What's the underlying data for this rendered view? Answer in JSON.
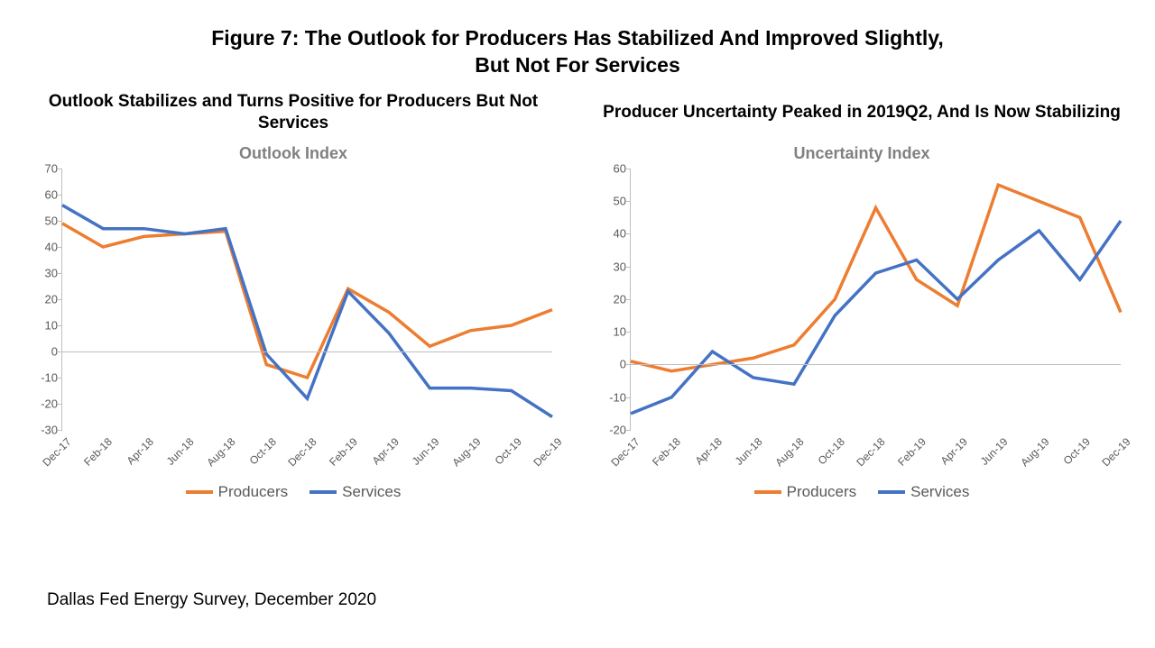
{
  "figure_title_line1": "Figure 7: The Outlook for Producers Has Stabilized And Improved Slightly,",
  "figure_title_line2": "But Not For Services",
  "source_text": "Dallas Fed Energy Survey, December 2020",
  "colors": {
    "producers": "#ed7d31",
    "services": "#4472c4",
    "axis_text": "#595959",
    "axis_line": "#bfbfbf",
    "chart_title_gray": "#808080",
    "background": "#ffffff"
  },
  "line_width": 3.5,
  "x_categories": [
    "Dec-17",
    "Feb-18",
    "Apr-18",
    "Jun-18",
    "Aug-18",
    "Oct-18",
    "Dec-18",
    "Feb-19",
    "Apr-19",
    "Jun-19",
    "Aug-19",
    "Oct-19",
    "Dec-19"
  ],
  "x_tick_every": 1,
  "x_label_rotation_deg": -45,
  "font_sizes": {
    "figure_title": 23,
    "panel_subtitle": 19,
    "chart_title": 18,
    "axis_tick": 13,
    "legend": 17,
    "source": 19
  },
  "left_panel": {
    "type": "line",
    "subtitle": "Outlook Stabilizes and Turns Positive for Producers But Not Services",
    "chart_title": "Outlook Index",
    "ylim": [
      -30,
      70
    ],
    "ytick_step": 10,
    "series": {
      "Producers": [
        49,
        40,
        44,
        45,
        46,
        -5,
        -10,
        24,
        15,
        2,
        8,
        10,
        16
      ],
      "Services": [
        56,
        47,
        47,
        45,
        47,
        -1,
        -18,
        23,
        7,
        -14,
        -14,
        -15,
        -25
      ]
    }
  },
  "right_panel": {
    "type": "line",
    "subtitle": "Producer Uncertainty Peaked in 2019Q2, And Is Now Stabilizing",
    "chart_title": "Uncertainty Index",
    "ylim": [
      -20,
      60
    ],
    "ytick_step": 10,
    "series": {
      "Producers": [
        1,
        -2,
        0,
        2,
        6,
        20,
        48,
        26,
        18,
        55,
        50,
        45,
        16
      ],
      "Services": [
        -15,
        -10,
        4,
        -4,
        -6,
        15,
        28,
        32,
        20,
        32,
        41,
        26,
        44
      ]
    }
  },
  "legend": {
    "items": [
      {
        "key": "Producers",
        "label": "Producers"
      },
      {
        "key": "Services",
        "label": "Services"
      }
    ]
  }
}
